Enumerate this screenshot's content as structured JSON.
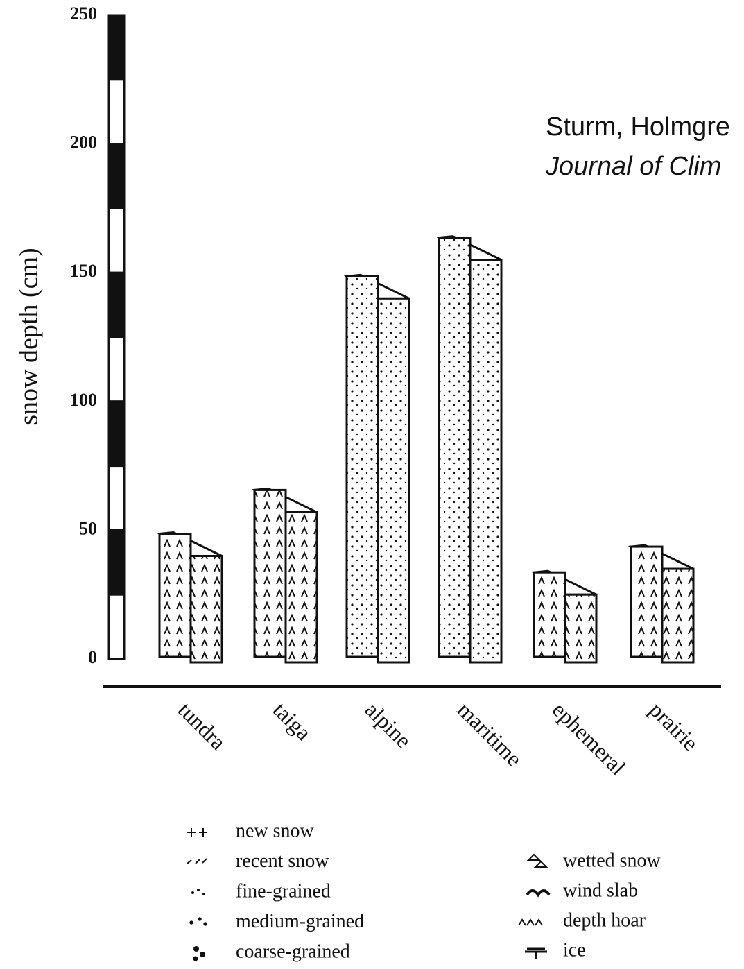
{
  "chart_data": {
    "type": "bar",
    "y_label": "snow depth (cm)",
    "annotations": [
      "Sturm, Holmgre",
      "Journal of Clim"
    ],
    "categories": [
      "tundra",
      "taiga",
      "alpine",
      "maritime",
      "ephemeral",
      "prairie"
    ],
    "values": [
      40,
      57,
      140,
      155,
      25,
      35
    ],
    "ylim": [
      0,
      250
    ],
    "yticks": [
      0,
      50,
      100,
      150,
      200,
      250
    ],
    "legend_items": [
      "new snow",
      "recent snow",
      "fine-grained",
      "medium-grained",
      "coarse-grained",
      "wetted snow",
      "wind slab",
      "depth hoar",
      "ice"
    ]
  }
}
